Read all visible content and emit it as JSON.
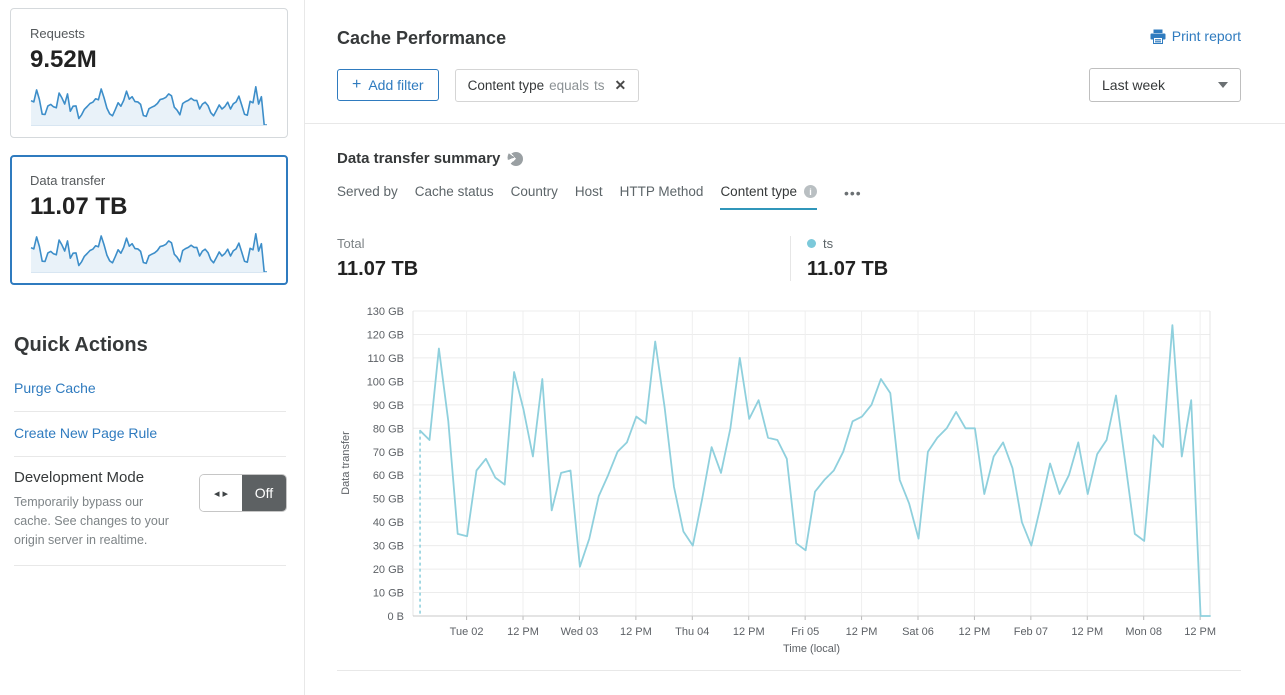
{
  "sidebar": {
    "cards": [
      {
        "label": "Requests",
        "value": "9.52M",
        "selected": false
      },
      {
        "label": "Data transfer",
        "value": "11.07 TB",
        "selected": true
      }
    ],
    "quick_actions": {
      "title": "Quick Actions",
      "links": [
        {
          "label": "Purge Cache"
        },
        {
          "label": "Create New Page Rule"
        }
      ],
      "dev_mode": {
        "title": "Development Mode",
        "description": "Temporarily bypass our cache. See changes to your origin server in realtime.",
        "toggle_label": "Off"
      }
    }
  },
  "header": {
    "title": "Cache Performance",
    "print_report_label": "Print report",
    "add_filter_label": "Add filter",
    "filter_chip": {
      "field": "Content type",
      "operator": "equals",
      "value": "ts"
    },
    "time_range_selected": "Last week"
  },
  "summary": {
    "title": "Data transfer summary",
    "tabs": [
      "Served by",
      "Cache status",
      "Country",
      "Host",
      "HTTP Method",
      "Content type"
    ],
    "active_tab": "Content type",
    "total": {
      "label": "Total",
      "value": "11.07 TB"
    },
    "legend": {
      "series": "ts",
      "value": "11.07 TB"
    }
  },
  "icons": {
    "print": "printer-icon",
    "summary_marker": "pie-chart-icon",
    "active_tab_info": "info-icon",
    "tabs_overflow": "ellipsis-icon",
    "chip_remove": "close-icon",
    "add_filter": "plus-icon",
    "range_dropdown": "chevron-down-icon",
    "dev_mode_toggle": "left-right-arrows-icon",
    "glyphs": {
      "plus": "+",
      "close": "✕",
      "ellipsis": "•••",
      "toggle_arrows": "◂ ▸",
      "info_i": "i"
    }
  },
  "colors": {
    "accent_blue": "#2f7bbf",
    "tab_underline": "#3096ba",
    "chart_line": "#8fd0dd",
    "legend_dot": "#7cc9da",
    "sparkline_line": "#3d8ec9",
    "sparkline_fill": "#e9f2f9",
    "toggle_off_bg": "#5d6163"
  },
  "chart_data": {
    "type": "line",
    "title": "Data transfer summary",
    "xlabel": "Time (local)",
    "ylabel": "Data transfer",
    "unit": "GB",
    "ylim": [
      0,
      130
    ],
    "ytick_step": 10,
    "ytick_labels": [
      "0 B",
      "10 GB",
      "20 GB",
      "30 GB",
      "40 GB",
      "50 GB",
      "60 GB",
      "70 GB",
      "80 GB",
      "90 GB",
      "100 GB",
      "110 GB",
      "120 GB",
      "130 GB"
    ],
    "xtick_labels": [
      "Tue 02",
      "12 PM",
      "Wed 03",
      "12 PM",
      "Thu 04",
      "12 PM",
      "Fri 05",
      "12 PM",
      "Sat 06",
      "12 PM",
      "Feb 07",
      "12 PM",
      "Mon 08",
      "12 PM"
    ],
    "x_domain_hours": 169.5,
    "x_first_tick_hour": 11.4,
    "x_tick_interval_hours": 12,
    "grid": true,
    "start_gap_dashed_line": true,
    "legend_position": "top-right",
    "series": [
      {
        "name": "ts",
        "total": "11.07 TB",
        "start_hour": 1.5,
        "step_hours": 2,
        "values_gb": [
          79,
          75,
          114,
          83,
          35,
          34,
          62,
          67,
          59,
          56,
          104,
          88,
          68,
          101,
          45,
          61,
          62,
          21,
          33,
          51,
          60,
          70,
          74,
          85,
          82,
          117,
          89,
          55,
          36,
          30,
          50,
          72,
          61,
          80,
          110,
          84,
          92,
          76,
          75,
          67,
          31,
          28,
          53,
          58,
          62,
          70,
          83,
          85,
          90,
          101,
          95,
          58,
          48,
          33,
          70,
          76,
          80,
          87,
          80,
          80,
          52,
          68,
          74,
          63,
          40,
          30,
          47,
          65,
          52,
          60,
          74,
          52,
          69,
          75,
          94,
          65,
          35,
          32,
          77,
          72,
          124,
          68,
          92,
          0,
          0
        ]
      }
    ]
  }
}
